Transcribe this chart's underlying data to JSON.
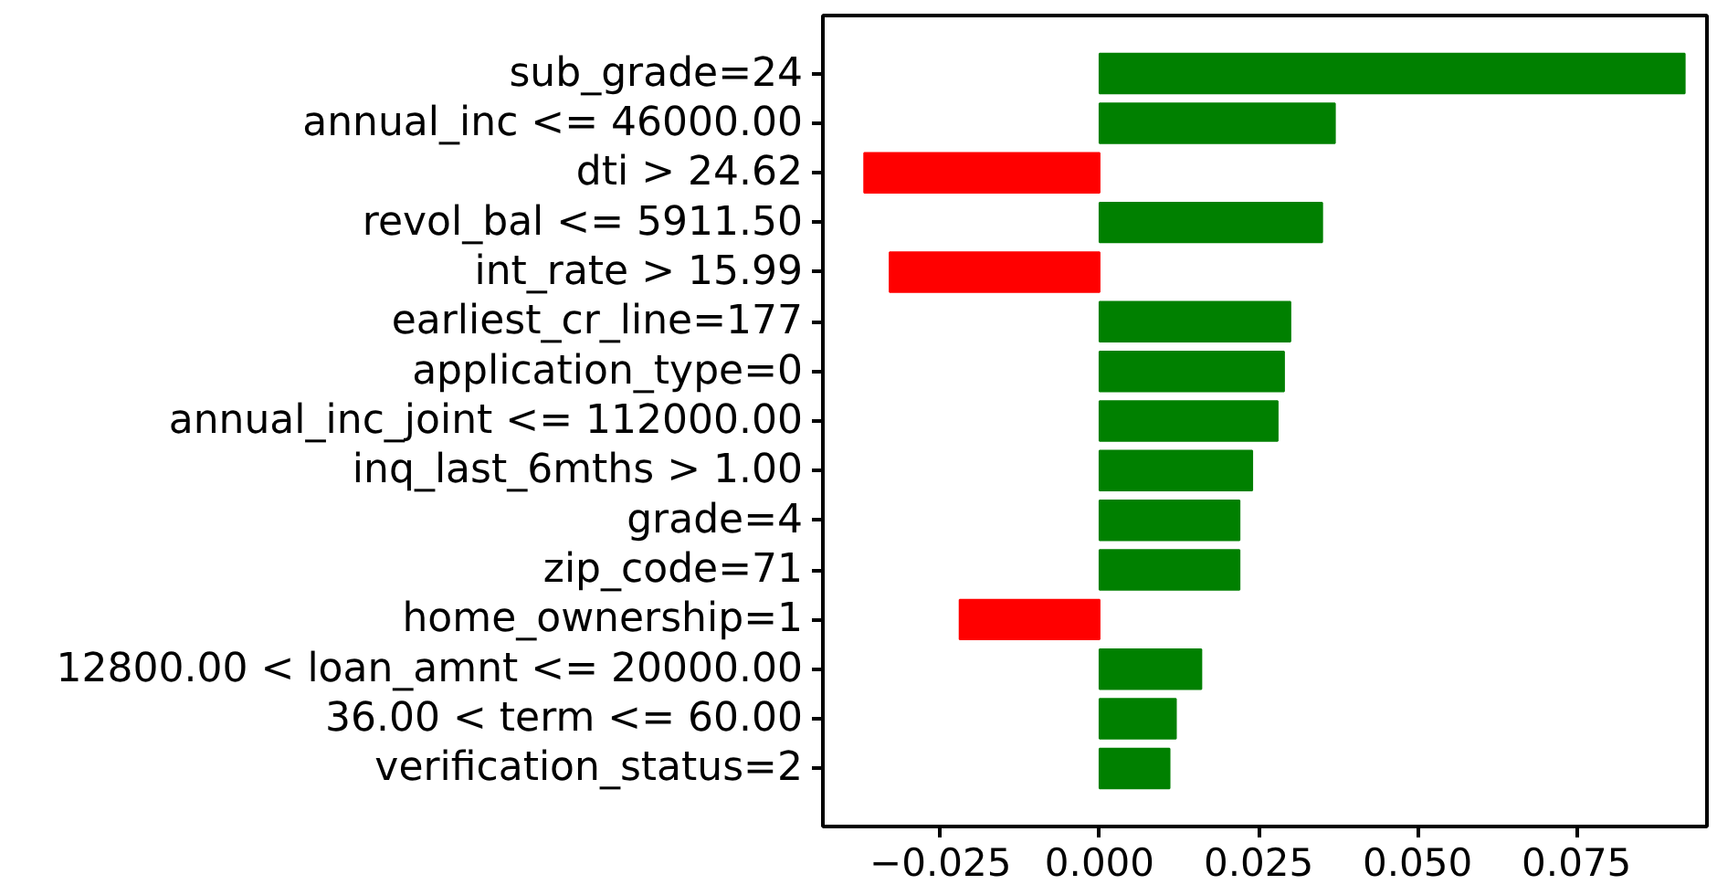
{
  "chart_data": {
    "type": "bar",
    "orientation": "horizontal",
    "categories": [
      "sub_grade=24",
      "annual_inc <= 46000.00",
      "dti > 24.62",
      "revol_bal <= 5911.50",
      "int_rate > 15.99",
      "earliest_cr_line=177",
      "application_type=0",
      "annual_inc_joint <= 112000.00",
      "inq_last_6mths > 1.00",
      "grade=4",
      "zip_code=71",
      "home_ownership=1",
      "12800.00 < loan_amnt <= 20000.00",
      "36.00 < term <= 60.00",
      "verification_status=2"
    ],
    "values": [
      0.092,
      0.037,
      -0.037,
      0.035,
      -0.033,
      0.03,
      0.029,
      0.028,
      0.024,
      0.022,
      0.022,
      -0.022,
      0.016,
      0.012,
      0.011
    ],
    "colors": [
      "#008000",
      "#008000",
      "#ff0000",
      "#008000",
      "#ff0000",
      "#008000",
      "#008000",
      "#008000",
      "#008000",
      "#008000",
      "#008000",
      "#ff0000",
      "#008000",
      "#008000",
      "#008000"
    ],
    "xlim": [
      -0.0435,
      0.0955
    ],
    "xticks": [
      {
        "value": -0.025,
        "label": "−0.025"
      },
      {
        "value": 0,
        "label": "0.000"
      },
      {
        "value": 0.025,
        "label": "0.025"
      },
      {
        "value": 0.05,
        "label": "0.050"
      },
      {
        "value": 0.075,
        "label": "0.075"
      }
    ],
    "grid": false
  }
}
